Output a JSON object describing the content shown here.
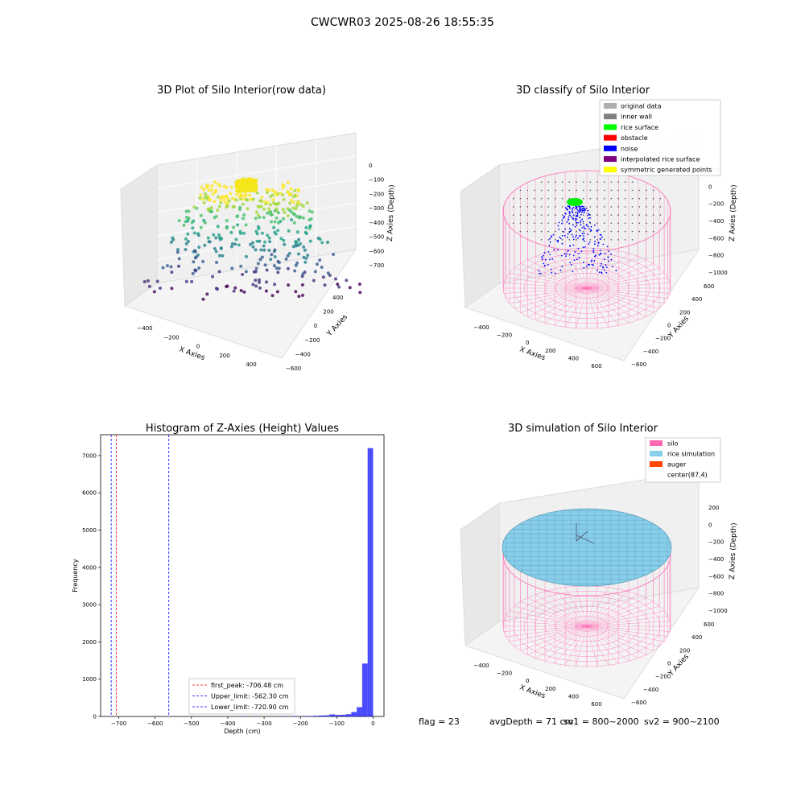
{
  "figure": {
    "suptitle": "CWCWR03 2025-08-26 18:55:35",
    "footer": {
      "flag": "flag = 23",
      "avg": "avgDepth = 71 cm",
      "sv1": "sv1 = 800~2000",
      "sv2": "sv2 = 900~2100"
    }
  },
  "colors": {
    "silo": "#ff69b4",
    "rice_sim": "#87ceeb",
    "hist_bar": "#0000ff",
    "first_peak": "#ff0000",
    "limits": "#0000ff"
  },
  "chart_data": [
    {
      "type": "scatter",
      "title": "3D Plot of Silo Interior(row data)",
      "xlabel": "X Axies",
      "ylabel": "Y Axies",
      "zlabel": "Z Axies (Depth)",
      "x_ticks": [
        "−400",
        "−200",
        "0",
        "200",
        "400"
      ],
      "y_ticks": [
        "400",
        "200",
        "0",
        "−200",
        "−400",
        "−600"
      ],
      "z_ticks": [
        "0",
        "−100",
        "−200",
        "−300",
        "−400",
        "−500",
        "−600",
        "−700"
      ],
      "xlim": [
        -500,
        500
      ],
      "ylim": [
        -650,
        500
      ],
      "zlim": [
        -760,
        20
      ],
      "colormap": "viridis",
      "points_summary": "dense cluster near surface (z ≈ −150 to −250) spreading down to ≈ −720"
    },
    {
      "type": "scatter",
      "title": "3D classify of Silo Interior",
      "xlabel": "X Axies",
      "ylabel": "Y Axies",
      "zlabel": "Z Axies (Depth)",
      "x_ticks": [
        "−400",
        "−200",
        "0",
        "200",
        "400",
        "600"
      ],
      "y_ticks": [
        "600",
        "400",
        "200",
        "0",
        "−200",
        "−400",
        "−600"
      ],
      "z_ticks": [
        "200",
        "0",
        "−200",
        "−400",
        "−600",
        "−800",
        "−1000"
      ],
      "legend": [
        {
          "label": "original data",
          "color": "#b0b0b0"
        },
        {
          "label": "inner wall",
          "color": "#808080"
        },
        {
          "label": "rice surface",
          "color": "#00ff00"
        },
        {
          "label": "obstacle",
          "color": "#ff0000"
        },
        {
          "label": "noise",
          "color": "#0000ff"
        },
        {
          "label": "interpolated rice surface",
          "color": "#800080"
        },
        {
          "label": "symmetric generated points",
          "color": "#ffff00"
        }
      ],
      "legend_position": "top-right"
    },
    {
      "type": "bar",
      "title": "Histogram of Z-Axies (Height) Values",
      "xlabel": "Depth (cm)",
      "ylabel": "Frequency",
      "xlim": [
        -750,
        30
      ],
      "ylim": [
        0,
        7560
      ],
      "x_ticks": [
        -700,
        -600,
        -500,
        -400,
        -300,
        -200,
        -100,
        0
      ],
      "y_ticks": [
        0,
        1000,
        2000,
        3000,
        4000,
        5000,
        6000,
        7000
      ],
      "bin_width": 15,
      "bins": [
        {
          "x": -15,
          "v": 7200
        },
        {
          "x": -30,
          "v": 1420
        },
        {
          "x": -45,
          "v": 250
        },
        {
          "x": -60,
          "v": 120
        },
        {
          "x": -75,
          "v": 60
        },
        {
          "x": -90,
          "v": 45
        },
        {
          "x": -105,
          "v": 40
        },
        {
          "x": -120,
          "v": 55
        },
        {
          "x": -135,
          "v": 30
        },
        {
          "x": -150,
          "v": 25
        },
        {
          "x": -165,
          "v": 18
        },
        {
          "x": -180,
          "v": 12
        },
        {
          "x": -195,
          "v": 10
        },
        {
          "x": -225,
          "v": 8
        },
        {
          "x": -255,
          "v": 10
        },
        {
          "x": -285,
          "v": 6
        },
        {
          "x": -330,
          "v": 8
        },
        {
          "x": -360,
          "v": 5
        }
      ],
      "vlines": [
        {
          "label": "first_peak: -706.48 cm",
          "x": -706.48,
          "color": "#ff0000"
        },
        {
          "label": "Upper_limit: -562.30 cm",
          "x": -562.3,
          "color": "#0000ff"
        },
        {
          "label": "Lower_limit: -720.90 cm",
          "x": -720.9,
          "color": "#0000ff"
        }
      ],
      "legend_position": "lower-center"
    },
    {
      "type": "scatter",
      "title": "3D simulation of Silo Interior",
      "xlabel": "X Axies",
      "ylabel": "Y Axies",
      "zlabel": "Z Axies (Depth)",
      "x_ticks": [
        "−400",
        "−200",
        "0",
        "200",
        "400",
        "600"
      ],
      "y_ticks": [
        "600",
        "400",
        "200",
        "0",
        "−200",
        "−400",
        "−600"
      ],
      "z_ticks": [
        "200",
        "0",
        "−200",
        "−400",
        "−600",
        "−800",
        "−1000"
      ],
      "legend": [
        {
          "label": "silo",
          "color": "#ff69b4"
        },
        {
          "label": "rice simulation",
          "color": "#87ceeb"
        },
        {
          "label": "auger",
          "color": "#ff4500"
        },
        {
          "label": "center(87,4)",
          "color": "#ffffff"
        }
      ],
      "legend_position": "top-right"
    }
  ]
}
